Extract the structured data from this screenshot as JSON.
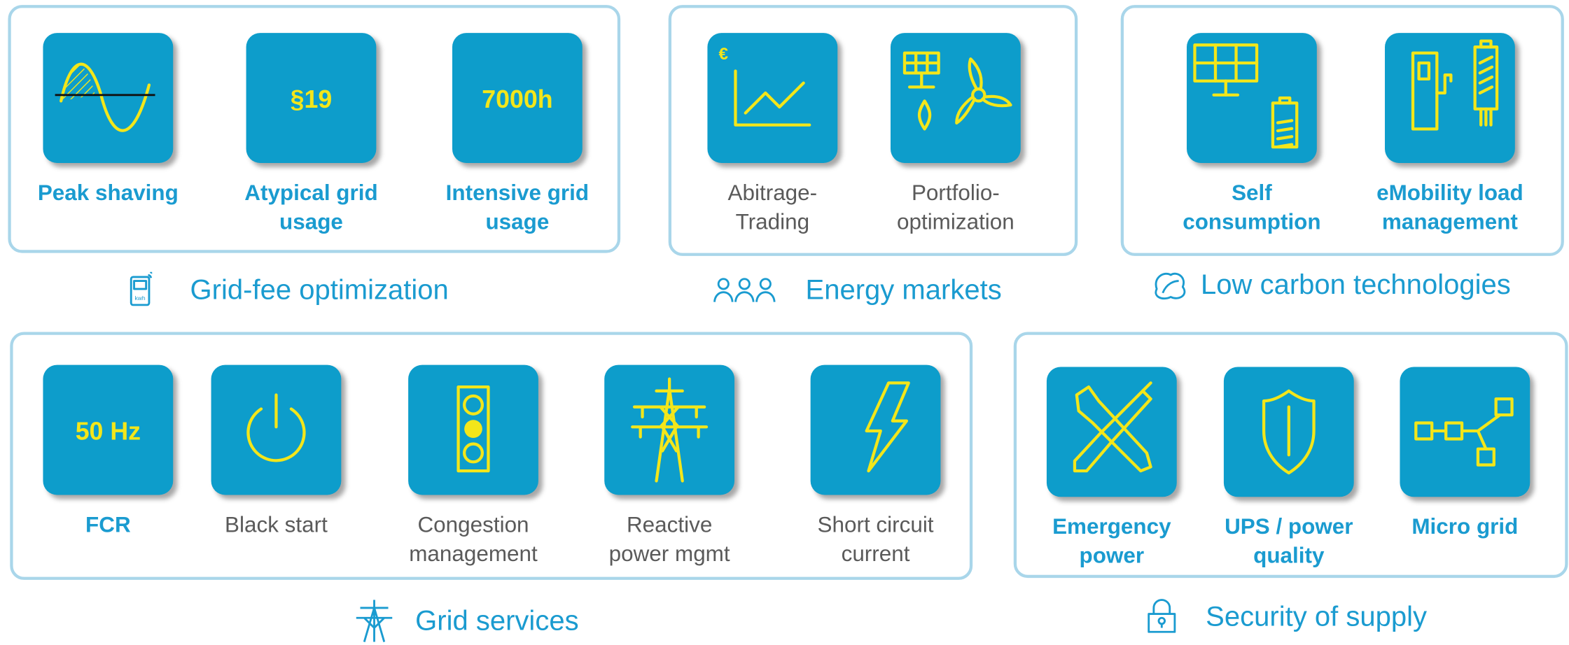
{
  "groups": [
    {
      "caption": "Grid-fee optimization",
      "caption_icon_text": "kwh",
      "items": [
        {
          "label": [
            "Peak shaving"
          ]
        },
        {
          "icon_text": "§19",
          "label": [
            "Atypical grid",
            "usage"
          ]
        },
        {
          "icon_text": "7000h",
          "label": [
            "Intensive grid",
            "usage"
          ]
        }
      ]
    },
    {
      "caption": "Energy markets",
      "items": [
        {
          "icon_text": "€",
          "label": [
            "Abitrage-",
            "Trading"
          ]
        },
        {
          "label": [
            "Portfolio-",
            "optimization"
          ]
        }
      ]
    },
    {
      "caption": "Low carbon technologies",
      "items": [
        {
          "label": [
            "Self",
            "consumption"
          ]
        },
        {
          "label": [
            "eMobility load",
            "management"
          ]
        }
      ]
    },
    {
      "caption": "Grid services",
      "items": [
        {
          "icon_text": "50 Hz",
          "label": [
            "FCR"
          ]
        },
        {
          "label": [
            "Black start"
          ]
        },
        {
          "label": [
            "Congestion",
            "management"
          ]
        },
        {
          "label": [
            "Reactive",
            "power mgmt"
          ]
        },
        {
          "label": [
            "Short circuit",
            "current"
          ]
        }
      ]
    },
    {
      "caption": "Security of supply",
      "items": [
        {
          "label": [
            "Emergency",
            "power"
          ]
        },
        {
          "label": [
            "UPS / power",
            "quality"
          ]
        },
        {
          "label": [
            "Micro grid"
          ]
        }
      ]
    }
  ]
}
